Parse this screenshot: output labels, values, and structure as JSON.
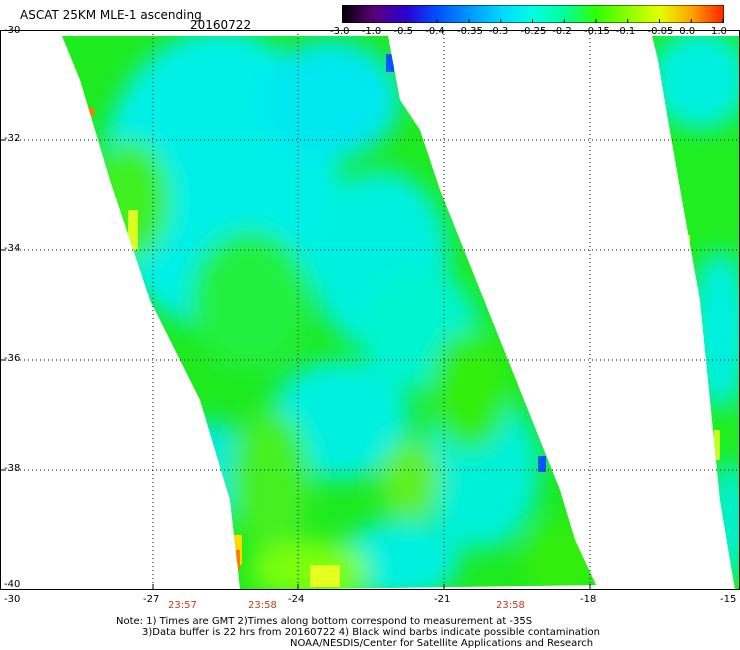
{
  "header": {
    "title": "ASCAT 25KM MLE-1 ascending",
    "date": "20160722"
  },
  "colorbar": {
    "labels": [
      "-3.0",
      "-1.0",
      "-0.5",
      "-0.4",
      "-0.35",
      "-0.3",
      "-0.25",
      "-0.2",
      "-0.15",
      "-0.1",
      "-0.05",
      "0.0",
      "1.0"
    ],
    "colors": [
      "#000000",
      "#5a007a",
      "#2a00d0",
      "#0050ff",
      "#0096ff",
      "#00d8ff",
      "#00ffe0",
      "#00ff9a",
      "#30ff00",
      "#8cff00",
      "#e4ff00",
      "#ffa000",
      "#ff2200"
    ]
  },
  "axes": {
    "lat_labels": [
      "-30",
      "-32",
      "-34",
      "-36",
      "-38",
      "-40"
    ],
    "lon_labels": [
      "-30",
      "-27",
      "-24",
      "-21",
      "-18",
      "-15"
    ]
  },
  "times": [
    "23:57",
    "23:58",
    "23:58"
  ],
  "notes": {
    "line1": "Note: 1) Times are GMT 2)Times along bottom correspond to measurement at -35S",
    "line2": "3)Data buffer is 22 hrs from 20160722 4) Black wind barbs indicate possible contamination",
    "line3": "NOAA/NESDIS/Center for Satellite Applications and Research"
  },
  "colors": {
    "swath_green": "#22ee10",
    "swath_cyan": "#00f0e8",
    "swath_light_green": "#66ff44",
    "time_red": "#c03a1f"
  }
}
